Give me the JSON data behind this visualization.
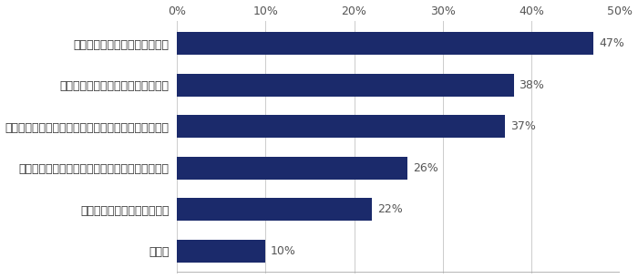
{
  "categories": [
    "その他",
    "人事・労務への業務負荷増加",
    "賃上げ対象にならない社員のモチベーション低下",
    "同業他社など各社が賃金を引き上げ、採用難度が上昇",
    "扶養限度がある社員の勤務時間減少",
    "アルバイト・パート社員が多い"
  ],
  "values": [
    10,
    22,
    26,
    37,
    38,
    47
  ],
  "bar_color": "#1b2a6b",
  "label_color": "#555555",
  "tick_color": "#555555",
  "xlim": [
    0,
    50
  ],
  "xticks": [
    0,
    10,
    20,
    30,
    40,
    50
  ],
  "xtick_labels": [
    "0%",
    "10%",
    "20%",
    "30%",
    "40%",
    "50%"
  ],
  "background_color": "#ffffff",
  "bar_height": 0.55,
  "fontsize_labels": 9,
  "fontsize_ticks": 9,
  "fontsize_values": 9
}
